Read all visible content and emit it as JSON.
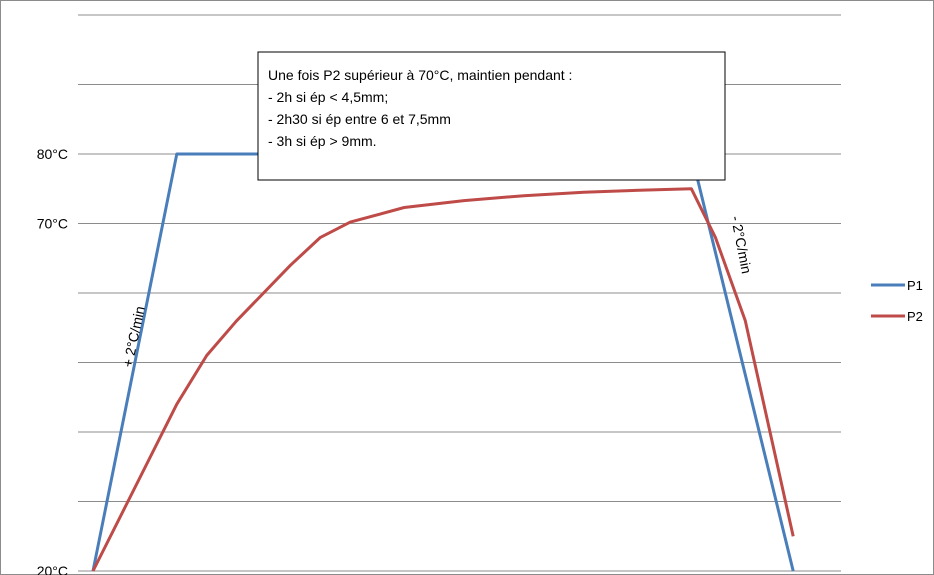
{
  "chart_data": {
    "type": "line",
    "title": "",
    "xlabel": "",
    "ylabel": "",
    "ylim": [
      20,
      100
    ],
    "grid": true,
    "legend_position": "right",
    "y_tick_labels": [
      {
        "value": 80,
        "label": "80°C"
      },
      {
        "value": 70,
        "label": "70°C"
      },
      {
        "value": 20,
        "label": "20°C"
      }
    ],
    "series": [
      {
        "name": "P1",
        "color": "#4a7ebb",
        "x": [
          0,
          14,
          100,
          117
        ],
        "y": [
          20,
          80,
          80,
          20
        ]
      },
      {
        "name": "P2",
        "color": "#be4b48",
        "x": [
          0,
          14,
          19,
          24,
          33,
          38,
          43,
          52,
          62,
          72,
          82,
          92,
          100,
          104,
          109,
          117
        ],
        "y": [
          20,
          44,
          51,
          56,
          64,
          68,
          70.2,
          72.3,
          73.3,
          74,
          74.5,
          74.8,
          75,
          68,
          56,
          25
        ]
      }
    ],
    "annotations": {
      "box_lines": [
        "Une fois P2 supérieur à 70°C, maintien pendant :",
        "- 2h si ép < 4,5mm;",
        "- 2h30 si ép entre 6 et 7,5mm",
        "- 3h si ép > 9mm."
      ],
      "rate_up": "+ 2°C/min",
      "rate_down": "- 2°C/min"
    }
  }
}
